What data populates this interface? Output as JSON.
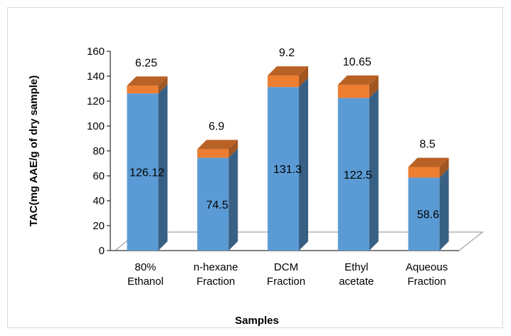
{
  "chart_data": {
    "type": "bar",
    "stacked": true,
    "three_d": true,
    "title": "",
    "xlabel": "Samples",
    "ylabel": "TAC(mg AAE/g of dry sample)",
    "ylim": [
      0,
      160
    ],
    "yticks": [
      0,
      20,
      40,
      60,
      80,
      100,
      120,
      140,
      160
    ],
    "grid": false,
    "legend": "none",
    "categories": [
      [
        "80%",
        "Ethanol"
      ],
      [
        "n-hexane",
        "Fraction"
      ],
      [
        "DCM",
        "Fraction"
      ],
      [
        "Ethyl",
        "acetate"
      ],
      [
        "Aqueous",
        "Fraction"
      ]
    ],
    "series": [
      {
        "values": [
          126.12,
          74.5,
          131.3,
          122.5,
          58.6
        ],
        "labels": [
          "126.12",
          "74.5",
          "131.3",
          "122.5",
          "58.6"
        ],
        "color": "#5b9bd5"
      },
      {
        "values": [
          6.25,
          6.9,
          9.2,
          10.65,
          8.5
        ],
        "labels": [
          "6.25",
          "6.9",
          "9.2",
          "10.65",
          "8.5"
        ],
        "color": "#ed7d31"
      }
    ]
  }
}
